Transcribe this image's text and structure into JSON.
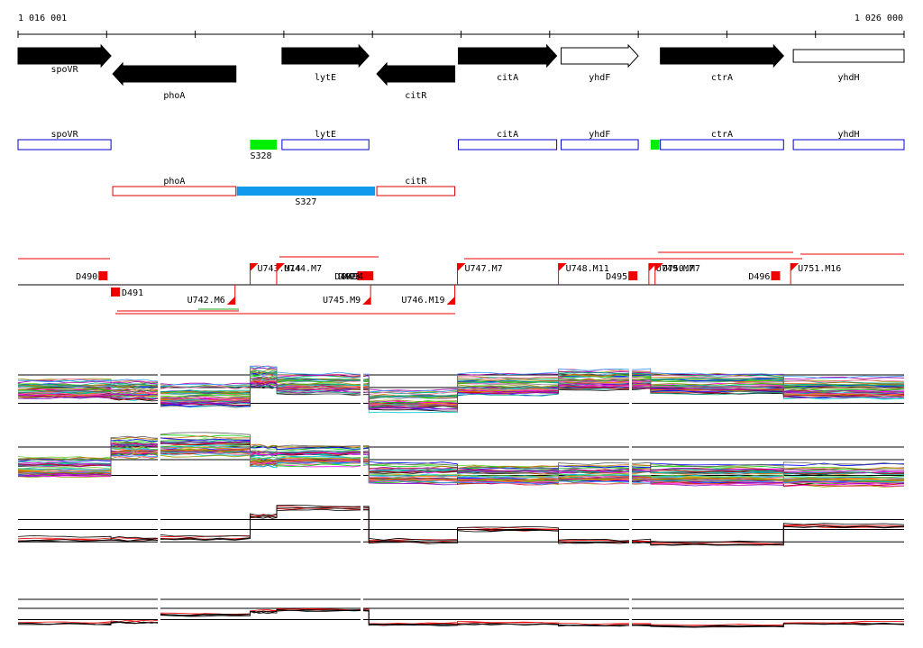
{
  "coordinates": {
    "start_label": "1 016 001",
    "end_label": "1 026 000",
    "start": 1016001,
    "end": 1026000
  },
  "colors": {
    "gene_fill": "#000000",
    "gene_outline_fill": "#ffffff",
    "forward_box": "#0000cc",
    "reverse_box": "#dd0000",
    "segment_green": "#00ee00",
    "segment_blue": "#1199ee",
    "feature_red": "#ee0000",
    "feature_green": "#22aa22"
  },
  "genes": [
    {
      "label": "spoVR",
      "strand": "+",
      "filled": true,
      "start": 1016001,
      "end": 1017050
    },
    {
      "label": "phoA",
      "strand": "-",
      "filled": true,
      "start": 1017070,
      "end": 1018460
    },
    {
      "label": "lytE",
      "strand": "+",
      "filled": true,
      "start": 1018980,
      "end": 1019960
    },
    {
      "label": "citR",
      "strand": "-",
      "filled": true,
      "start": 1020050,
      "end": 1020930
    },
    {
      "label": "citA",
      "strand": "+",
      "filled": true,
      "start": 1020970,
      "end": 1022080
    },
    {
      "label": "yhdF",
      "strand": "+",
      "filled": false,
      "start": 1022130,
      "end": 1023000
    },
    {
      "label": "ctrA",
      "strand": "+",
      "filled": true,
      "start": 1023250,
      "end": 1024640
    },
    {
      "label": "yhdH",
      "strand": "+",
      "filled": false,
      "start": 1024750,
      "end": 1026000
    }
  ],
  "forward_track": [
    {
      "label": "spoVR",
      "start": 1016001,
      "end": 1017050
    },
    {
      "label": "lytE",
      "start": 1018980,
      "end": 1019960
    },
    {
      "label": "citA",
      "start": 1020970,
      "end": 1022080
    },
    {
      "label": "yhdF",
      "start": 1022130,
      "end": 1023000
    },
    {
      "label": "ctrA",
      "start": 1023250,
      "end": 1024640
    },
    {
      "label": "yhdH",
      "start": 1024750,
      "end": 1026000
    }
  ],
  "reverse_track": [
    {
      "label": "phoA",
      "start": 1017070,
      "end": 1018460
    },
    {
      "label": "citR",
      "start": 1020050,
      "end": 1020930
    }
  ],
  "segments": [
    {
      "label": "S328",
      "color": "segment_green",
      "start": 1018620,
      "end": 1018920,
      "track": "forward"
    },
    {
      "label": "",
      "color": "segment_green",
      "start": 1023140,
      "end": 1023240,
      "track": "forward"
    },
    {
      "label": "S327",
      "color": "segment_blue",
      "start": 1018470,
      "end": 1020030,
      "track": "reverse"
    }
  ],
  "features_upper": [
    {
      "label": "D490",
      "kind": "D",
      "pos": 1016960
    },
    {
      "label": "U743.M14",
      "kind": "U",
      "pos": 1018620
    },
    {
      "label": "U744.M7",
      "kind": "U",
      "pos": 1018920
    },
    {
      "label": "D492",
      "kind": "D",
      "pos": 1019880
    },
    {
      "label": "D493",
      "kind": "D",
      "pos": 1019920
    },
    {
      "label": "D494",
      "kind": "D",
      "pos": 1019960
    },
    {
      "label": "U747.M7",
      "kind": "U",
      "pos": 1020960
    },
    {
      "label": "U748.M11",
      "kind": "U",
      "pos": 1022100
    },
    {
      "label": "D495",
      "kind": "D",
      "pos": 1022940
    },
    {
      "label": "U749.M7",
      "kind": "U",
      "pos": 1023120
    },
    {
      "label": "U750.M7",
      "kind": "U",
      "pos": 1023190
    },
    {
      "label": "D496",
      "kind": "D",
      "pos": 1024550
    },
    {
      "label": "U751.M16",
      "kind": "U",
      "pos": 1024720
    }
  ],
  "features_lower": [
    {
      "label": "D491",
      "kind": "D",
      "pos": 1017100
    },
    {
      "label": "U742.M6",
      "kind": "U",
      "pos": 1018450
    },
    {
      "label": "U745.M9",
      "kind": "U",
      "pos": 1019980
    },
    {
      "label": "U746.M19",
      "kind": "U",
      "pos": 1020930
    }
  ],
  "expression_panels": [
    {
      "name": "panel-1",
      "levels": [
        3.1,
        3.0,
        2.4,
        4.2,
        3.6,
        2.0,
        3.4,
        4.0,
        3.6,
        3.1
      ],
      "traces": 45
    },
    {
      "name": "panel-2",
      "levels": [
        2.2,
        4.1,
        4.3,
        3.2,
        3.3,
        1.6,
        1.5,
        1.6,
        1.5,
        1.4
      ],
      "traces": 45
    },
    {
      "name": "panel-3",
      "levels": [
        1.8,
        1.8,
        2.0,
        4.6,
        5.6,
        1.6,
        3.0,
        1.5,
        1.3,
        3.4
      ],
      "traces": 5
    },
    {
      "name": "panel-4",
      "levels": [
        1.0,
        1.2,
        2.2,
        2.6,
        2.8,
        0.9,
        1.0,
        0.8,
        0.7,
        1.0
      ],
      "traces": 5
    }
  ]
}
